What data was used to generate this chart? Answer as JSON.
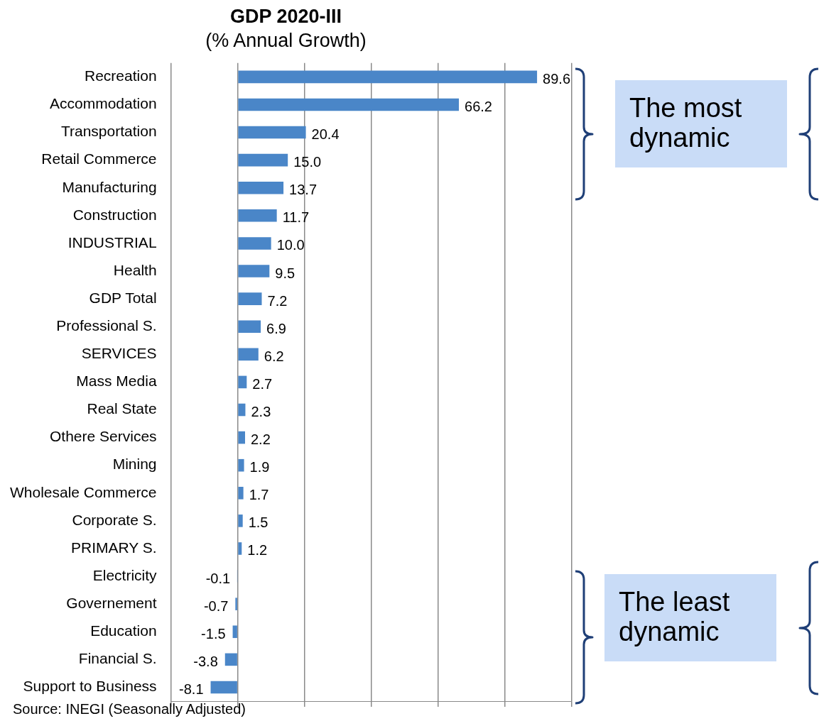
{
  "chart_data": {
    "type": "bar",
    "orientation": "horizontal",
    "title": "GDP 2020-III",
    "subtitle": "(% Annual Growth)",
    "categories": [
      "Recreation",
      "Accommodation",
      "Transportation",
      "Retail Commerce",
      "Manufacturing",
      "Construction",
      "INDUSTRIAL",
      "Health",
      "GDP Total",
      "Professional S.",
      "SERVICES",
      "Mass Media",
      "Real State",
      "Othere Services",
      "Mining",
      "Wholesale Commerce",
      "Corporate S.",
      "PRIMARY S.",
      "Electricity",
      "Governement",
      "Education",
      "Financial S.",
      "Support to Business"
    ],
    "values": [
      89.6,
      66.2,
      20.4,
      15.0,
      13.7,
      11.7,
      10.0,
      9.5,
      7.2,
      6.9,
      6.2,
      2.7,
      2.3,
      2.2,
      1.9,
      1.7,
      1.5,
      1.2,
      -0.1,
      -0.7,
      -1.5,
      -3.8,
      -8.1
    ],
    "value_labels": [
      "89.6",
      "66.2",
      "20.4",
      "15.0",
      "13.7",
      "11.7",
      "10.0",
      "9.5",
      "7.2",
      "6.9",
      "6.2",
      "2.7",
      "2.3",
      "2.2",
      "1.9",
      "1.7",
      "1.5",
      "1.2",
      "-0.1",
      "-0.7",
      "-1.5",
      "-3.8",
      "-8.1"
    ],
    "color": "#4a86c8",
    "xlim": [
      -20,
      100
    ],
    "xticks": [
      {
        "value": -20,
        "label": null
      },
      {
        "value": 0,
        "label": null
      },
      {
        "value": 20,
        "label": null
      },
      {
        "value": 40,
        "label": null
      },
      {
        "value": 60,
        "label": null
      },
      {
        "value": 80,
        "label": null
      },
      {
        "value": 100,
        "label": null
      }
    ],
    "grid": "x",
    "legend": false,
    "tick_labels": "y",
    "annotations": [
      "The most dynamic",
      "The least dynamic",
      "Source: INEGI (Seasonally Adjusted)"
    ]
  }
}
